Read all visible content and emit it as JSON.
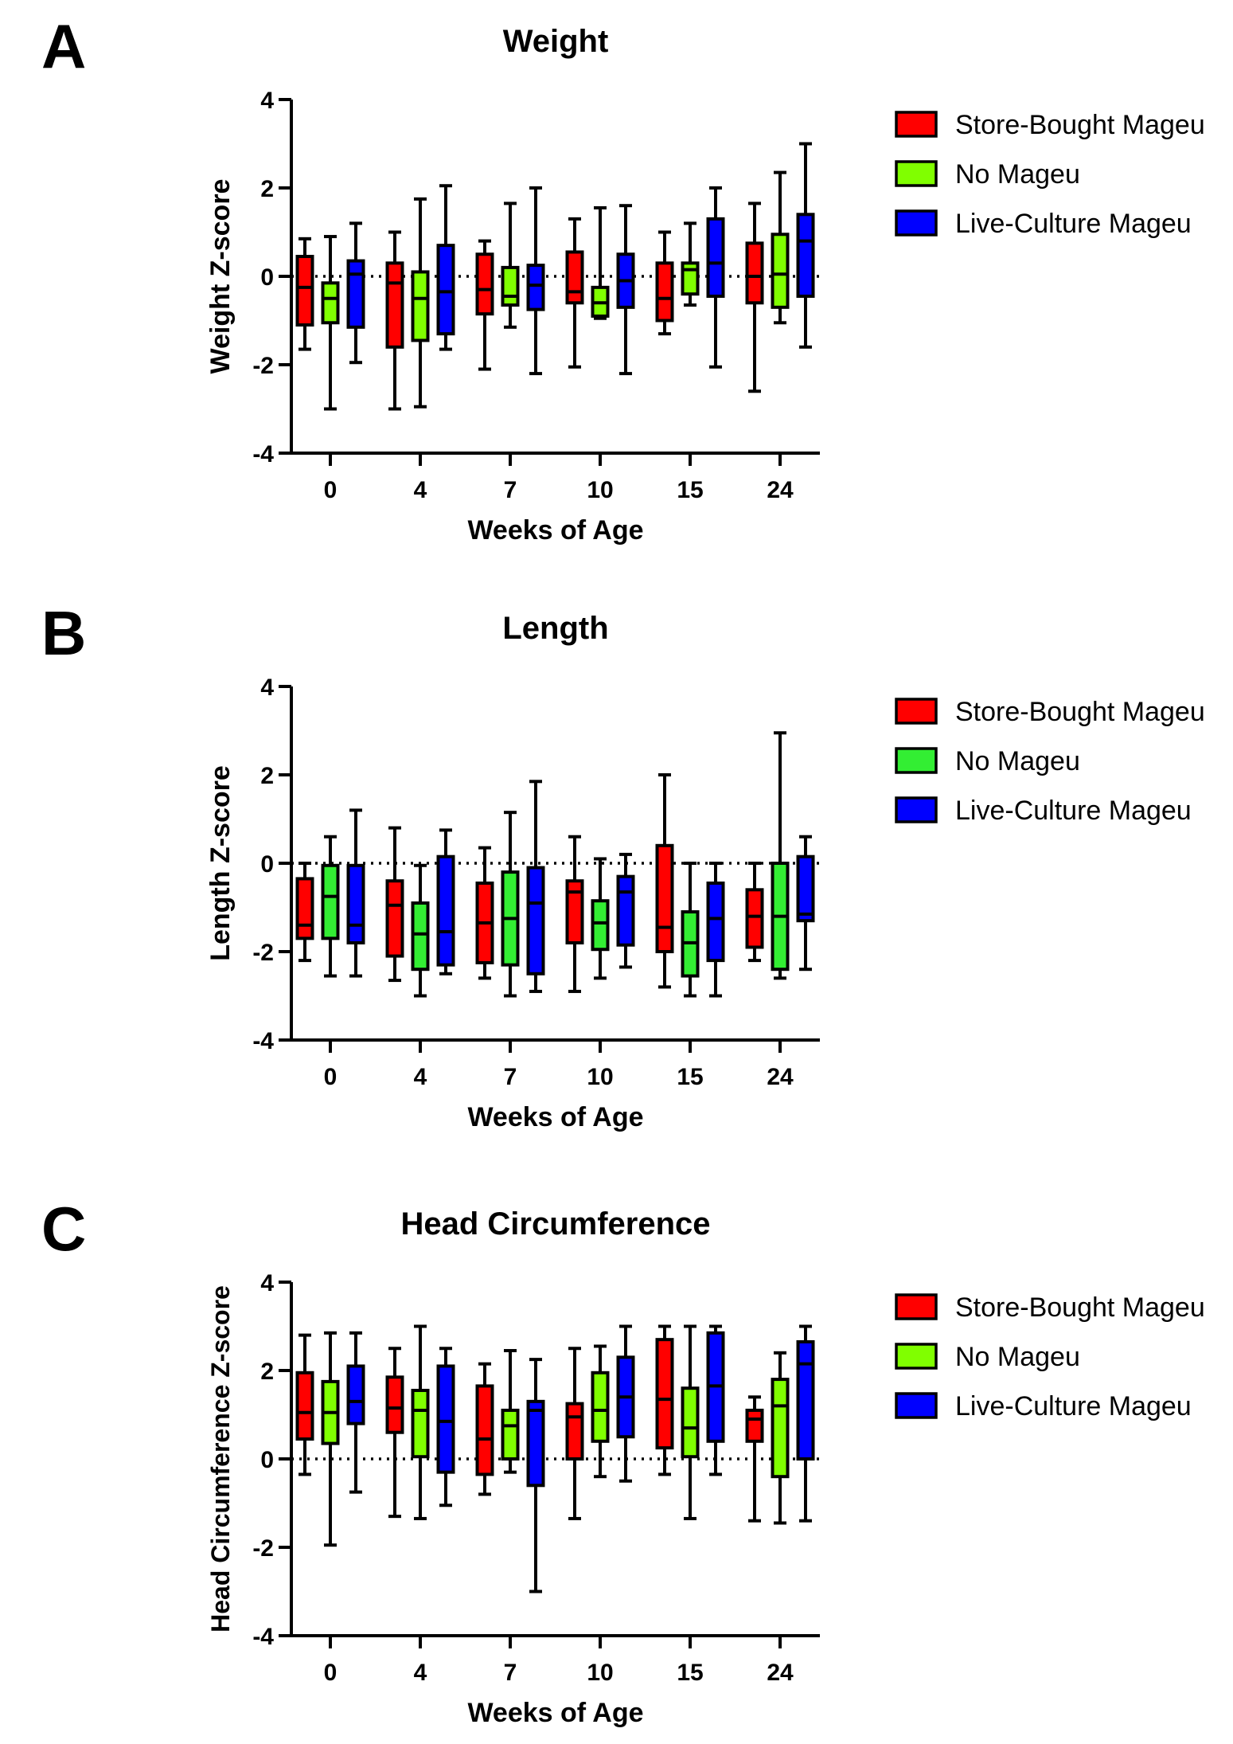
{
  "panels": [
    {
      "letter": "A",
      "chart_data": {
        "type": "boxplot",
        "title": "Weight",
        "xlabel": "Weeks of Age",
        "ylabel": "Weight Z-score",
        "categories": [
          "0",
          "4",
          "7",
          "10",
          "15",
          "24"
        ],
        "yticks": [
          "4",
          "2",
          "0",
          "-2",
          "-4"
        ],
        "ylim": [
          -4,
          4
        ],
        "reference_line": 0,
        "series": [
          {
            "name": "Store-Bought Mageu",
            "color": "#ff0000",
            "boxes": [
              {
                "min": -1.65,
                "q1": -1.1,
                "median": -0.25,
                "q3": 0.45,
                "max": 0.85
              },
              {
                "min": -3.0,
                "q1": -1.6,
                "median": -0.15,
                "q3": 0.3,
                "max": 1.0
              },
              {
                "min": -2.1,
                "q1": -0.85,
                "median": -0.3,
                "q3": 0.5,
                "max": 0.8
              },
              {
                "min": -2.05,
                "q1": -0.6,
                "median": -0.35,
                "q3": 0.55,
                "max": 1.3
              },
              {
                "min": -1.3,
                "q1": -1.0,
                "median": -0.5,
                "q3": 0.3,
                "max": 1.0
              },
              {
                "min": -2.6,
                "q1": -0.6,
                "median": 0.0,
                "q3": 0.75,
                "max": 1.65
              }
            ]
          },
          {
            "name": "No Mageu",
            "color": "#80ff00",
            "boxes": [
              {
                "min": -3.0,
                "q1": -1.05,
                "median": -0.5,
                "q3": -0.15,
                "max": 0.9
              },
              {
                "min": -2.95,
                "q1": -1.45,
                "median": -0.5,
                "q3": 0.1,
                "max": 1.75
              },
              {
                "min": -1.15,
                "q1": -0.65,
                "median": -0.45,
                "q3": 0.2,
                "max": 1.65
              },
              {
                "min": -0.95,
                "q1": -0.9,
                "median": -0.6,
                "q3": -0.25,
                "max": 1.55
              },
              {
                "min": -0.65,
                "q1": -0.4,
                "median": 0.15,
                "q3": 0.3,
                "max": 1.2
              },
              {
                "min": -1.05,
                "q1": -0.7,
                "median": 0.05,
                "q3": 0.95,
                "max": 2.35
              }
            ]
          },
          {
            "name": "Live-Culture Mageu",
            "color": "#0000ff",
            "boxes": [
              {
                "min": -1.95,
                "q1": -1.15,
                "median": 0.05,
                "q3": 0.35,
                "max": 1.2
              },
              {
                "min": -1.65,
                "q1": -1.3,
                "median": -0.35,
                "q3": 0.7,
                "max": 2.05
              },
              {
                "min": -2.2,
                "q1": -0.75,
                "median": -0.2,
                "q3": 0.25,
                "max": 2.0
              },
              {
                "min": -2.2,
                "q1": -0.7,
                "median": -0.1,
                "q3": 0.5,
                "max": 1.6
              },
              {
                "min": -2.05,
                "q1": -0.45,
                "median": 0.3,
                "q3": 1.3,
                "max": 2.0
              },
              {
                "min": -1.6,
                "q1": -0.45,
                "median": 0.8,
                "q3": 1.4,
                "max": 3.0
              }
            ]
          }
        ]
      }
    },
    {
      "letter": "B",
      "chart_data": {
        "type": "boxplot",
        "title": "Length",
        "xlabel": "Weeks of Age",
        "ylabel": "Length Z-score",
        "categories": [
          "0",
          "4",
          "7",
          "10",
          "15",
          "24"
        ],
        "yticks": [
          "4",
          "2",
          "0",
          "-2",
          "-4"
        ],
        "ylim": [
          -4,
          4
        ],
        "reference_line": 0,
        "series": [
          {
            "name": "Store-Bought Mageu",
            "color": "#ff0000",
            "boxes": [
              {
                "min": -2.2,
                "q1": -1.7,
                "median": -1.4,
                "q3": -0.35,
                "max": 0.0
              },
              {
                "min": -2.65,
                "q1": -2.1,
                "median": -0.95,
                "q3": -0.4,
                "max": 0.8
              },
              {
                "min": -2.6,
                "q1": -2.25,
                "median": -1.35,
                "q3": -0.45,
                "max": 0.35
              },
              {
                "min": -2.9,
                "q1": -1.8,
                "median": -0.65,
                "q3": -0.4,
                "max": 0.6
              },
              {
                "min": -2.8,
                "q1": -2.0,
                "median": -1.45,
                "q3": 0.4,
                "max": 2.0
              },
              {
                "min": -2.2,
                "q1": -1.9,
                "median": -1.2,
                "q3": -0.6,
                "max": 0.0
              }
            ]
          },
          {
            "name": "No Mageu",
            "color": "#33ee33",
            "boxes": [
              {
                "min": -2.55,
                "q1": -1.7,
                "median": -0.75,
                "q3": -0.05,
                "max": 0.6
              },
              {
                "min": -3.0,
                "q1": -2.4,
                "median": -1.6,
                "q3": -0.9,
                "max": -0.05
              },
              {
                "min": -3.0,
                "q1": -2.3,
                "median": -1.25,
                "q3": -0.2,
                "max": 1.15
              },
              {
                "min": -2.6,
                "q1": -1.95,
                "median": -1.35,
                "q3": -0.85,
                "max": 0.1
              },
              {
                "min": -3.0,
                "q1": -2.55,
                "median": -1.8,
                "q3": -1.1,
                "max": 0.0
              },
              {
                "min": -2.6,
                "q1": -2.4,
                "median": -1.2,
                "q3": 0.0,
                "max": 2.95
              }
            ]
          },
          {
            "name": "Live-Culture Mageu",
            "color": "#0000ff",
            "boxes": [
              {
                "min": -2.55,
                "q1": -1.8,
                "median": -1.4,
                "q3": -0.05,
                "max": 1.2
              },
              {
                "min": -2.5,
                "q1": -2.3,
                "median": -1.55,
                "q3": 0.15,
                "max": 0.75
              },
              {
                "min": -2.9,
                "q1": -2.5,
                "median": -0.9,
                "q3": -0.1,
                "max": 1.85
              },
              {
                "min": -2.35,
                "q1": -1.85,
                "median": -0.65,
                "q3": -0.3,
                "max": 0.2
              },
              {
                "min": -3.0,
                "q1": -2.2,
                "median": -1.25,
                "q3": -0.45,
                "max": 0.0
              },
              {
                "min": -2.4,
                "q1": -1.3,
                "median": -1.15,
                "q3": 0.15,
                "max": 0.6
              }
            ]
          }
        ]
      }
    },
    {
      "letter": "C",
      "chart_data": {
        "type": "boxplot",
        "title": "Head Circumference",
        "xlabel": "Weeks of Age",
        "ylabel": "Head Circumference Z-score",
        "categories": [
          "0",
          "4",
          "7",
          "10",
          "15",
          "24"
        ],
        "yticks": [
          "4",
          "2",
          "0",
          "-2",
          "-4"
        ],
        "ylim": [
          -4,
          4
        ],
        "reference_line": 0,
        "series": [
          {
            "name": "Store-Bought Mageu",
            "color": "#ff0000",
            "boxes": [
              {
                "min": -0.35,
                "q1": 0.45,
                "median": 1.05,
                "q3": 1.95,
                "max": 2.8
              },
              {
                "min": -1.3,
                "q1": 0.6,
                "median": 1.15,
                "q3": 1.85,
                "max": 2.5
              },
              {
                "min": -0.8,
                "q1": -0.35,
                "median": 0.45,
                "q3": 1.65,
                "max": 2.15
              },
              {
                "min": -1.35,
                "q1": 0.0,
                "median": 0.95,
                "q3": 1.25,
                "max": 2.5
              },
              {
                "min": -0.35,
                "q1": 0.25,
                "median": 1.35,
                "q3": 2.7,
                "max": 3.0
              },
              {
                "min": -1.4,
                "q1": 0.4,
                "median": 0.9,
                "q3": 1.1,
                "max": 1.4
              }
            ]
          },
          {
            "name": "No Mageu",
            "color": "#80ff00",
            "boxes": [
              {
                "min": -1.95,
                "q1": 0.35,
                "median": 1.05,
                "q3": 1.75,
                "max": 2.85
              },
              {
                "min": -1.35,
                "q1": 0.05,
                "median": 1.1,
                "q3": 1.55,
                "max": 3.0
              },
              {
                "min": -0.3,
                "q1": 0.0,
                "median": 0.75,
                "q3": 1.1,
                "max": 2.45
              },
              {
                "min": -0.4,
                "q1": 0.4,
                "median": 1.1,
                "q3": 1.95,
                "max": 2.55
              },
              {
                "min": -1.35,
                "q1": 0.05,
                "median": 0.7,
                "q3": 1.6,
                "max": 3.0
              },
              {
                "min": -1.45,
                "q1": -0.4,
                "median": 1.2,
                "q3": 1.8,
                "max": 2.4
              }
            ]
          },
          {
            "name": "Live-Culture Mageu",
            "color": "#0000ff",
            "boxes": [
              {
                "min": -0.75,
                "q1": 0.8,
                "median": 1.3,
                "q3": 2.1,
                "max": 2.85
              },
              {
                "min": -1.05,
                "q1": -0.3,
                "median": 0.85,
                "q3": 2.1,
                "max": 2.5
              },
              {
                "min": -3.0,
                "q1": -0.6,
                "median": 1.1,
                "q3": 1.3,
                "max": 2.25
              },
              {
                "min": -0.5,
                "q1": 0.5,
                "median": 1.4,
                "q3": 2.3,
                "max": 3.0
              },
              {
                "min": -0.35,
                "q1": 0.4,
                "median": 1.65,
                "q3": 2.85,
                "max": 3.0
              },
              {
                "min": -1.4,
                "q1": 0.0,
                "median": 2.15,
                "q3": 2.65,
                "max": 3.0
              }
            ]
          }
        ]
      }
    }
  ]
}
